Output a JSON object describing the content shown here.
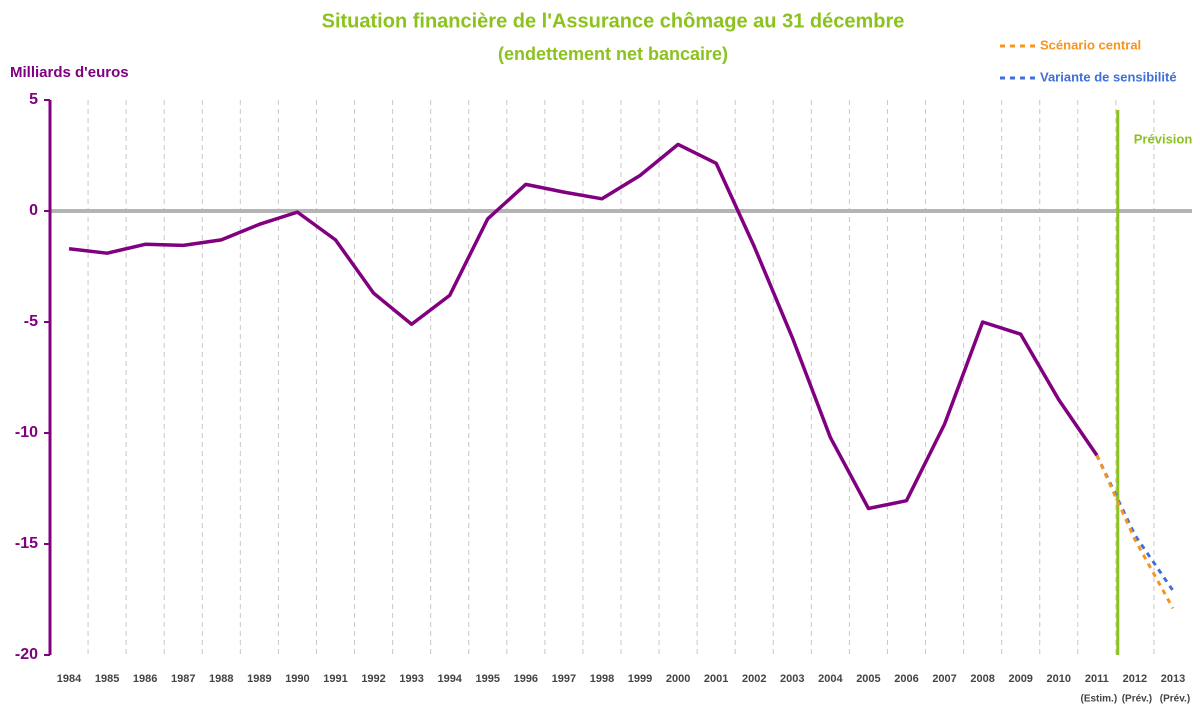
{
  "chart_data": {
    "type": "line",
    "title": "Situation financière de l'Assurance chômage au 31 décembre",
    "subtitle": "(endettement net bancaire)",
    "y_label": "Milliards d'euros",
    "annotation": "Prévision",
    "categories": [
      "1984",
      "1985",
      "1986",
      "1987",
      "1988",
      "1989",
      "1990",
      "1991",
      "1992",
      "1993",
      "1994",
      "1995",
      "1996",
      "1997",
      "1998",
      "1999",
      "2000",
      "2001",
      "2002",
      "2003",
      "2004",
      "2005",
      "2006",
      "2007",
      "2008",
      "2009",
      "2010",
      "2011",
      "2012",
      "2013"
    ],
    "sublabels": [
      null,
      null,
      null,
      null,
      null,
      null,
      null,
      null,
      null,
      null,
      null,
      null,
      null,
      null,
      null,
      null,
      null,
      null,
      null,
      null,
      null,
      null,
      null,
      null,
      null,
      null,
      null,
      "(Estim.)",
      "(Prév.)",
      "(Prév.)"
    ],
    "series": [
      {
        "color": "#800080",
        "values": [
          -1.7,
          -1.9,
          -1.5,
          -1.55,
          -1.3,
          -0.6,
          -0.05,
          -1.3,
          -3.7,
          -5.1,
          -3.8,
          -0.35,
          1.2,
          0.85,
          0.55,
          1.6,
          3.0,
          2.15,
          -1.6,
          -5.7,
          -10.2,
          -13.4,
          -13.05,
          -9.6,
          -5.0,
          -5.55,
          -8.5,
          -11.0,
          null,
          null
        ]
      },
      {
        "name": "Scénario central",
        "color": "#f7941d",
        "dashed": true,
        "values": [
          null,
          null,
          null,
          null,
          null,
          null,
          null,
          null,
          null,
          null,
          null,
          null,
          null,
          null,
          null,
          null,
          null,
          null,
          null,
          null,
          null,
          null,
          null,
          null,
          null,
          null,
          null,
          -11.0,
          -14.8,
          -17.9
        ]
      },
      {
        "name": "Variante de sensibilité",
        "color": "#3f6fd8",
        "dashed": true,
        "values": [
          null,
          null,
          null,
          null,
          null,
          null,
          null,
          null,
          null,
          null,
          null,
          null,
          null,
          null,
          null,
          null,
          null,
          null,
          null,
          null,
          null,
          null,
          null,
          null,
          null,
          null,
          null,
          -11.0,
          -14.6,
          -17.1
        ]
      }
    ],
    "ylim": [
      -20,
      5
    ],
    "yticks": [
      -20,
      -15,
      -10,
      -5,
      0,
      5
    ],
    "title_color": "#8cc21e",
    "axis_color": "#800080"
  }
}
